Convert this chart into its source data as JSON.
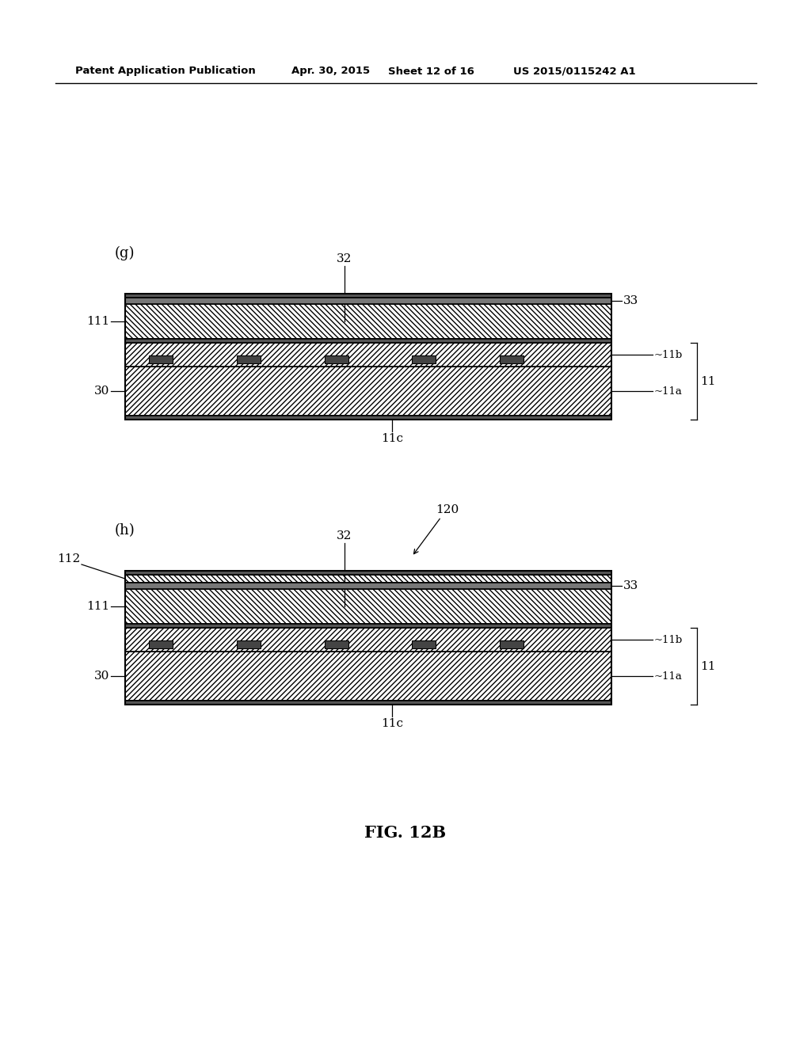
{
  "bg_color": "#ffffff",
  "header_text": "Patent Application Publication",
  "header_date": "Apr. 30, 2015",
  "header_sheet": "Sheet 12 of 16",
  "header_patent": "US 2015/0115242 A1",
  "fig_label": "FIG. 12B",
  "diagram_g_label": "(g)",
  "diagram_h_label": "(h)",
  "lc": "#000000",
  "lw": 1.2,
  "fs": 11
}
